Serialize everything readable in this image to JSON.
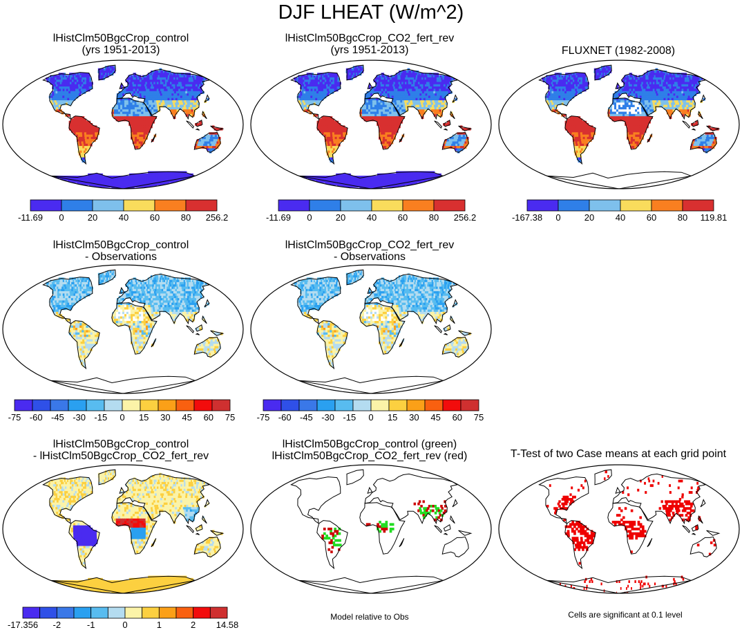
{
  "title": "DJF LHEAT (W/m^2)",
  "panels": [
    {
      "id": "p1",
      "title": [
        "lHistClm50BgcCrop_control",
        "(yrs 1951-2013)"
      ],
      "kind": "abs"
    },
    {
      "id": "p2",
      "title": [
        "lHistClm50BgcCrop_CO2_fert_rev",
        "(yrs 1951-2013)"
      ],
      "kind": "abs"
    },
    {
      "id": "p3",
      "title": [
        "FLUXNET (1982-2008)"
      ],
      "kind": "obs"
    },
    {
      "id": "p4",
      "title": [
        "lHistClm50BgcCrop_control",
        "- Observations"
      ],
      "kind": "diffobs"
    },
    {
      "id": "p5",
      "title": [
        "lHistClm50BgcCrop_CO2_fert_rev",
        "- Observations"
      ],
      "kind": "diffobs"
    },
    {
      "id": "p6",
      "title": [
        "lHistClm50BgcCrop_control",
        "- lHistClm50BgcCrop_CO2_fert_rev"
      ],
      "kind": "diffcase"
    },
    {
      "id": "p7",
      "title": [
        "lHistClm50BgcCrop_control (green)",
        "lHistClm50BgcCrop_CO2_fert_rev (red)"
      ],
      "kind": "sig2"
    },
    {
      "id": "p8",
      "title": [
        "T-Test of two Case means at each grid point"
      ],
      "kind": "sig"
    }
  ],
  "colorbars": [
    {
      "id": "cb1",
      "labels": [
        "-11.69",
        "0",
        "20",
        "40",
        "60",
        "80",
        "256.2"
      ],
      "colors": [
        "#4a2bf0",
        "#2f7fe8",
        "#7ec0ec",
        "#f9dc5c",
        "#f97f20",
        "#d83030"
      ]
    },
    {
      "id": "cb2",
      "labels": [
        "-11.69",
        "0",
        "20",
        "40",
        "60",
        "80",
        "256.2"
      ],
      "colors": [
        "#4a2bf0",
        "#2f7fe8",
        "#7ec0ec",
        "#f9dc5c",
        "#f97f20",
        "#d83030"
      ]
    },
    {
      "id": "cb3",
      "labels": [
        "-167.38",
        "0",
        "20",
        "40",
        "60",
        "80",
        "119.81"
      ],
      "colors": [
        "#4a2bf0",
        "#2f7fe8",
        "#7ec0ec",
        "#f9dc5c",
        "#f97f20",
        "#d83030"
      ]
    },
    {
      "id": "cb4",
      "labels": [
        "-75",
        "-60",
        "-45",
        "-30",
        "-15",
        "0",
        "15",
        "30",
        "45",
        "60",
        "75"
      ],
      "colors": [
        "#4a2bf0",
        "#2f50e8",
        "#3a78e8",
        "#2aa0f0",
        "#58bcf0",
        "#b4dcf0",
        "#fbf3a8",
        "#fcd040",
        "#fba018",
        "#f96010",
        "#f20c0c",
        "#cf3030"
      ]
    },
    {
      "id": "cb5",
      "labels": [
        "-75",
        "-60",
        "-45",
        "-30",
        "-15",
        "0",
        "15",
        "30",
        "45",
        "60",
        "75"
      ],
      "colors": [
        "#4a2bf0",
        "#2f50e8",
        "#3a78e8",
        "#2aa0f0",
        "#58bcf0",
        "#b4dcf0",
        "#fbf3a8",
        "#fcd040",
        "#fba018",
        "#f96010",
        "#f20c0c",
        "#cf3030"
      ]
    },
    {
      "id": "cb6",
      "labels": [
        "-17.356",
        "",
        "-2",
        "",
        "-1",
        "",
        "0",
        "",
        "1",
        "",
        "2",
        "",
        "14.58"
      ],
      "colors": [
        "#4a2bf0",
        "#2f50e8",
        "#3a78e8",
        "#2aa0f0",
        "#58bcf0",
        "#b4dcf0",
        "#fbf3a8",
        "#fcd040",
        "#fba018",
        "#f96010",
        "#f20c0c",
        "#cf3030"
      ]
    }
  ],
  "footnotes": {
    "model_relative": "Model relative to Obs",
    "significance": "Cells are significant at 0.1 level"
  },
  "chart_data": {
    "type": "heatmap",
    "title": "DJF LHEAT (W/m^2)",
    "projection": "global map",
    "grid": false,
    "colorbar_ticks": {
      "control": [
        -11.69,
        0,
        20,
        40,
        60,
        80,
        256.2
      ],
      "co2_fert_rev": [
        -11.69,
        0,
        20,
        40,
        60,
        80,
        256.2
      ],
      "fluxnet": [
        -167.38,
        0,
        20,
        40,
        60,
        80,
        119.81
      ],
      "model_minus_obs": [
        -75,
        -60,
        -45,
        -30,
        -15,
        0,
        15,
        30,
        45,
        60,
        75
      ],
      "case_difference": [
        -17.356,
        -2,
        -1,
        0,
        1,
        2,
        14.58
      ]
    }
  }
}
